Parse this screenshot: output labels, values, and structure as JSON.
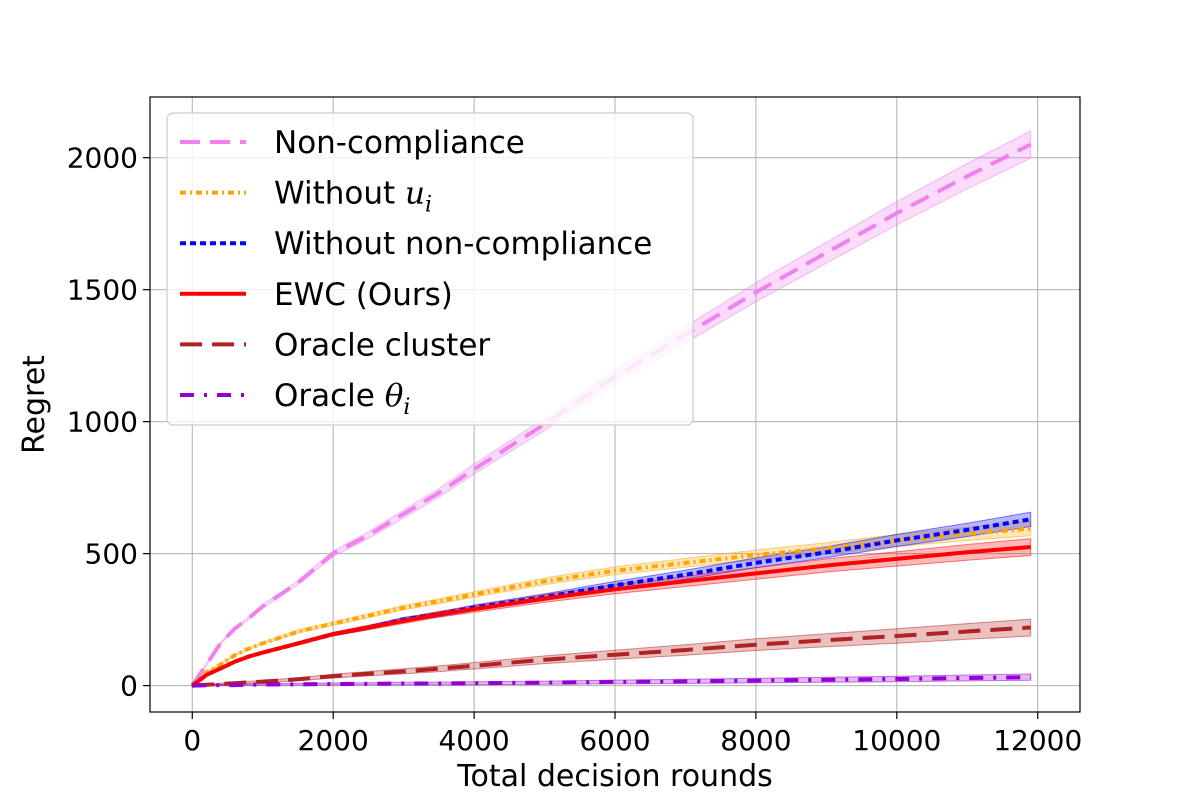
{
  "chart_data": {
    "type": "line",
    "xlabel": "Total decision rounds",
    "ylabel": "Regret",
    "xlim": [
      -600,
      12600
    ],
    "ylim": [
      -100,
      2230
    ],
    "x_ticks": [
      "0",
      "2000",
      "4000",
      "6000",
      "8000",
      "10000",
      "12000"
    ],
    "y_ticks": [
      "0",
      "500",
      "1000",
      "1500",
      "2000"
    ],
    "grid": true,
    "legend_position": "top-left",
    "x": [
      0,
      200,
      400,
      600,
      800,
      1000,
      1500,
      2000,
      2500,
      3000,
      3500,
      4000,
      5000,
      6000,
      7000,
      8000,
      9000,
      10000,
      11000,
      11900
    ],
    "series": [
      {
        "name": "Non-compliance",
        "legend_main": "Non-compliance",
        "legend_sub": "",
        "color": "#ee82ee",
        "dash": "20,10",
        "width": 4,
        "band": 50,
        "values": [
          0,
          80,
          160,
          215,
          255,
          300,
          390,
          500,
          570,
          650,
          730,
          820,
          990,
          1170,
          1330,
          1490,
          1640,
          1790,
          1930,
          2050
        ]
      },
      {
        "name": "Without u_i",
        "legend_main": "Without ",
        "legend_sub": "u",
        "legend_subscript": "i",
        "color": "#ffa500",
        "dash": "6,4,2,4",
        "width": 4,
        "band": 25,
        "values": [
          0,
          50,
          80,
          115,
          140,
          160,
          205,
          235,
          265,
          295,
          320,
          345,
          395,
          435,
          465,
          495,
          520,
          550,
          575,
          595
        ]
      },
      {
        "name": "Without non-compliance",
        "legend_main": "Without non-compliance",
        "legend_sub": "",
        "color": "#0000ff",
        "dash": "6,4",
        "width": 4,
        "band": 25,
        "values": [
          0,
          40,
          65,
          90,
          110,
          125,
          160,
          195,
          220,
          250,
          270,
          295,
          335,
          380,
          420,
          465,
          505,
          550,
          590,
          630
        ]
      },
      {
        "name": "EWC (Ours)",
        "legend_main": "EWC (Ours)",
        "legend_sub": "",
        "color": "#ff0000",
        "dash": "",
        "width": 4,
        "band": 30,
        "values": [
          0,
          40,
          65,
          90,
          110,
          125,
          160,
          195,
          220,
          245,
          270,
          290,
          330,
          365,
          395,
          425,
          455,
          480,
          505,
          525
        ]
      },
      {
        "name": "Oracle cluster",
        "legend_main": "Oracle cluster",
        "legend_sub": "",
        "color": "#b22222",
        "dash": "22,10",
        "width": 4,
        "band": 30,
        "values": [
          0,
          3,
          6,
          9,
          12,
          15,
          24,
          36,
          45,
          54,
          64,
          75,
          98,
          117,
          135,
          155,
          172,
          188,
          205,
          220
        ]
      },
      {
        "name": "Oracle θ_i",
        "legend_main": "Oracle ",
        "legend_sub": "θ",
        "legend_subscript": "i",
        "color": "#9400d3",
        "dash": "14,10,3,10",
        "width": 4,
        "band": 10,
        "values": [
          0,
          1,
          2,
          2,
          3,
          4,
          5,
          6,
          7,
          8,
          8,
          9,
          11,
          14,
          16,
          19,
          22,
          25,
          29,
          32
        ]
      }
    ]
  }
}
